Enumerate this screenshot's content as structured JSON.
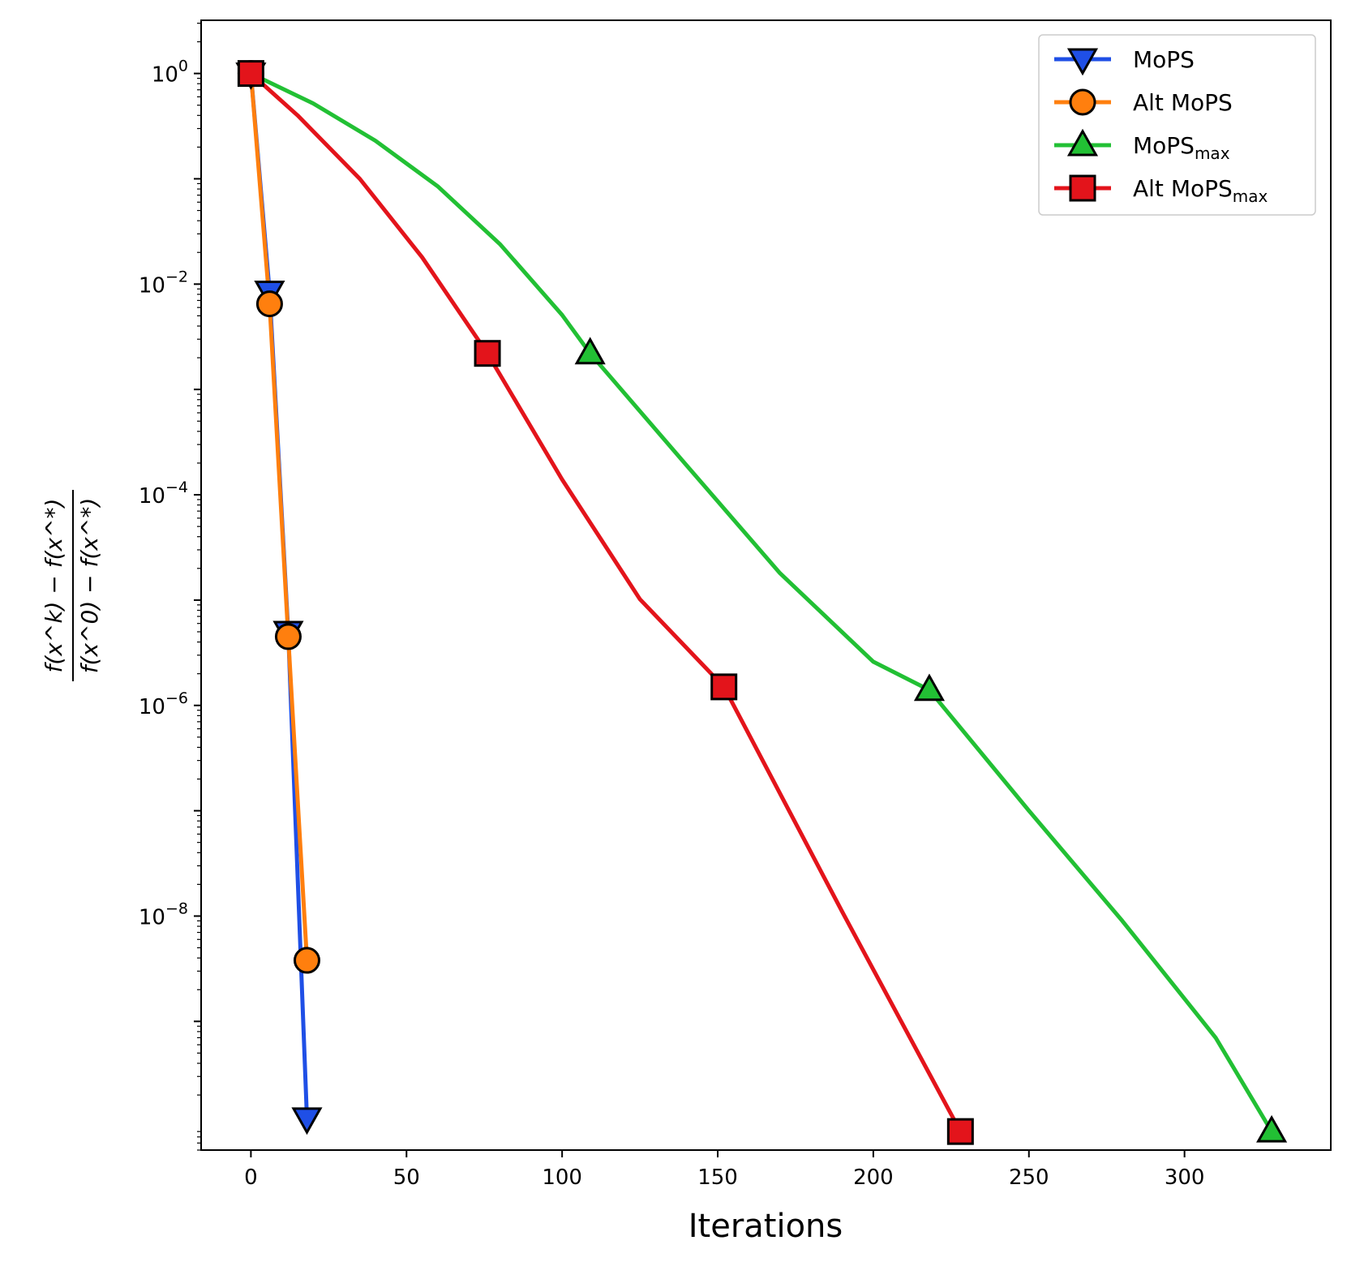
{
  "chart_data": {
    "type": "line",
    "title": "",
    "xlabel": "Iterations",
    "ylabel": {
      "numerator": "f(x^k) − f(x^*)",
      "denominator": "f(x^0) − f(x^*)"
    },
    "yscale": "log",
    "xlim": [
      -16,
      347
    ],
    "ylim": [
      6e-11,
      3.2
    ],
    "xticks": [
      0,
      50,
      100,
      150,
      200,
      250,
      300
    ],
    "xtick_labels": [
      "0",
      "50",
      "100",
      "150",
      "200",
      "250",
      "300"
    ],
    "yticks": [
      1,
      0.01,
      0.0001,
      1e-06,
      1e-08
    ],
    "ytick_labels": [
      {
        "base": "10",
        "exp": "0"
      },
      {
        "base": "10",
        "exp": "−2"
      },
      {
        "base": "10",
        "exp": "−4"
      },
      {
        "base": "10",
        "exp": "−6"
      },
      {
        "base": "10",
        "exp": "−8"
      }
    ],
    "legend_position": "upper right",
    "series": [
      {
        "name": "MoPS",
        "label_main": "MoPS",
        "label_sub": "",
        "color": "#1f4fe6",
        "marker": "triangle-down",
        "x": [
          0,
          6,
          12,
          18
        ],
        "y": [
          1,
          0.0085,
          5e-06,
          1.2e-10
        ],
        "markers_x": [
          0,
          6,
          12,
          18
        ],
        "markers_y": [
          1,
          0.0085,
          5e-06,
          1.2e-10
        ]
      },
      {
        "name": "Alt MoPS",
        "label_main": "Alt MoPS",
        "label_sub": "",
        "color": "#ff7f0e",
        "marker": "circle",
        "x": [
          0,
          6,
          12,
          18
        ],
        "y": [
          1,
          0.0065,
          4.5e-06,
          3.8e-09
        ],
        "markers_x": [
          0,
          6,
          12,
          18
        ],
        "markers_y": [
          1,
          0.0065,
          4.5e-06,
          3.8e-09
        ]
      },
      {
        "name": "MoPSmax",
        "label_main": "MoPS",
        "label_sub": "max",
        "color": "#22c034",
        "marker": "triangle-up",
        "x": [
          0,
          20,
          40,
          60,
          80,
          100,
          109,
          140,
          170,
          200,
          218,
          250,
          280,
          310,
          328
        ],
        "y": [
          1,
          0.52,
          0.23,
          0.085,
          0.024,
          0.0051,
          0.0022,
          0.00019,
          1.8e-05,
          2.6e-06,
          1.4e-06,
          1e-07,
          9e-09,
          7e-10,
          9e-11
        ],
        "markers_x": [
          109,
          218,
          328
        ],
        "markers_y": [
          0.0022,
          1.4e-06,
          9e-11
        ]
      },
      {
        "name": "Alt MoPSmax",
        "label_main": "Alt MoPS",
        "label_sub": "max",
        "color": "#e3141b",
        "marker": "square",
        "x": [
          0,
          15,
          35,
          55,
          76,
          100,
          125,
          152,
          190,
          228
        ],
        "y": [
          1,
          0.4,
          0.1,
          0.018,
          0.0022,
          0.00014,
          1.02e-05,
          1.5e-06,
          1.1e-08,
          9e-11
        ],
        "markers_x": [
          0,
          76,
          152,
          228
        ],
        "markers_y": [
          1,
          0.0022,
          1.5e-06,
          9e-11
        ]
      }
    ]
  }
}
